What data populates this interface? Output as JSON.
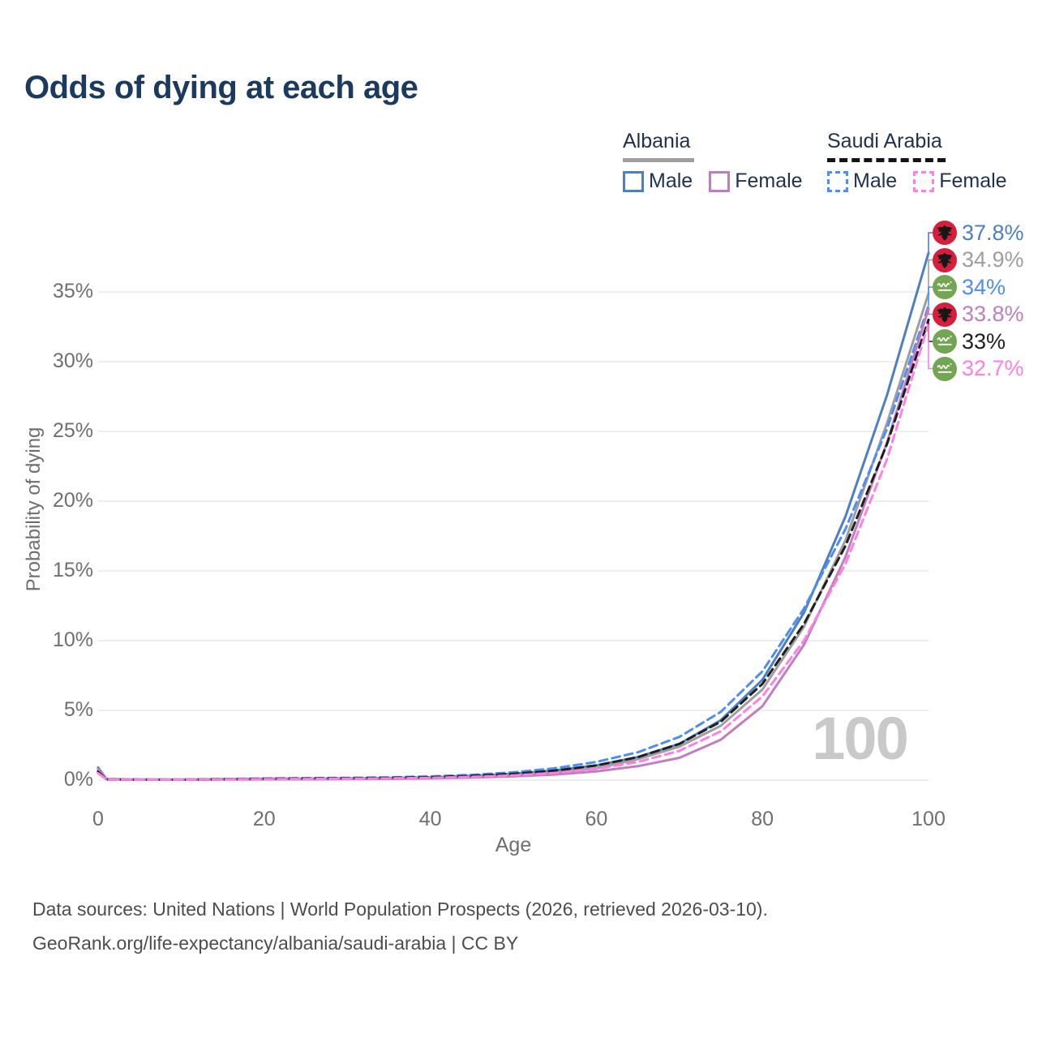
{
  "title": "Odds of dying at each age",
  "legend": {
    "groups": [
      {
        "label": "Albania",
        "underline_color": "#9e9e9e",
        "underline_style": "solid",
        "items": [
          {
            "label": "Male",
            "color": "#4d7fc1",
            "dashed": false
          },
          {
            "label": "Female",
            "color": "#bf7ec1",
            "dashed": false
          }
        ]
      },
      {
        "label": "Saudi Arabia",
        "underline_color": "#141414",
        "underline_style": "dashed",
        "items": [
          {
            "label": "Male",
            "color": "#4e8df6",
            "dashed": true
          },
          {
            "label": "Female",
            "color": "#ff7fe2",
            "dashed": true
          }
        ]
      }
    ]
  },
  "watermark": "100",
  "footer": {
    "line1": "Data sources: United Nations | World Population Prospects (2026, retrieved 2026-03-10).",
    "line2": "GeoRank.org/life-expectancy/albania/saudi-arabia | CC BY"
  },
  "chart_data": {
    "type": "line",
    "title": "Odds of dying at each age",
    "xlabel": "Age",
    "ylabel": "Probability of dying",
    "xlim": [
      0,
      100
    ],
    "ylim": [
      0,
      40.7
    ],
    "grid": true,
    "legend_position": "top-right",
    "x_tick_values": [
      0,
      20,
      40,
      60,
      80,
      100
    ],
    "x_tick_labels": [
      "0",
      "20",
      "40",
      "60",
      "80",
      "100"
    ],
    "y_tick_values": [
      0,
      5,
      10,
      15,
      20,
      25,
      30,
      35
    ],
    "y_tick_labels": [
      "0%",
      "5%",
      "10%",
      "15%",
      "20%",
      "25%",
      "30%",
      "35%"
    ],
    "x": [
      0,
      1,
      5,
      10,
      15,
      20,
      25,
      30,
      35,
      40,
      45,
      50,
      55,
      60,
      65,
      70,
      75,
      80,
      85,
      90,
      95,
      100
    ],
    "series": [
      {
        "id": "albania-male",
        "name": "Albania Male",
        "color": "#4d7fc1",
        "dash": "solid",
        "flag": "albania",
        "end_label": "37.8%",
        "values": [
          0.9,
          0.08,
          0.04,
          0.04,
          0.07,
          0.1,
          0.11,
          0.12,
          0.15,
          0.2,
          0.3,
          0.45,
          0.7,
          1.05,
          1.65,
          2.6,
          4.3,
          7.2,
          12.0,
          18.9,
          27.6,
          37.8
        ]
      },
      {
        "id": "albania-all",
        "name": "Albania Both sexes",
        "color": "#9e9e9e",
        "dash": "solid",
        "flag": "albania",
        "end_label": "34.9%",
        "values": [
          0.8,
          0.07,
          0.04,
          0.03,
          0.05,
          0.08,
          0.09,
          0.1,
          0.12,
          0.16,
          0.24,
          0.36,
          0.55,
          0.85,
          1.5,
          2.4,
          3.9,
          6.5,
          11.0,
          17.2,
          25.6,
          34.9
        ]
      },
      {
        "id": "saudi-arabia-male",
        "name": "Saudi Arabia Male",
        "color": "#4e8df6",
        "dash": "dashed",
        "flag": "saudi-arabia",
        "end_label": "34%",
        "values": [
          0.7,
          0.06,
          0.04,
          0.04,
          0.08,
          0.12,
          0.14,
          0.16,
          0.2,
          0.27,
          0.38,
          0.56,
          0.85,
          1.3,
          2.0,
          3.1,
          4.9,
          7.8,
          12.3,
          18.0,
          25.2,
          34.0
        ]
      },
      {
        "id": "albania-female",
        "name": "Albania Female",
        "color": "#bf7ec1",
        "dash": "solid",
        "flag": "albania",
        "end_label": "33.8%",
        "values": [
          0.75,
          0.06,
          0.03,
          0.03,
          0.04,
          0.05,
          0.06,
          0.07,
          0.09,
          0.12,
          0.18,
          0.27,
          0.4,
          0.62,
          1.0,
          1.6,
          2.9,
          5.3,
          9.7,
          16.0,
          24.2,
          33.8
        ]
      },
      {
        "id": "saudi-arabia-all",
        "name": "Saudi Arabia Both sexes",
        "color": "#1f1f1f",
        "dash": "dashed",
        "flag": "saudi-arabia",
        "end_label": "33%",
        "values": [
          0.6,
          0.05,
          0.03,
          0.03,
          0.06,
          0.09,
          0.11,
          0.13,
          0.16,
          0.21,
          0.3,
          0.45,
          0.68,
          1.05,
          1.65,
          2.6,
          4.2,
          6.9,
          11.2,
          16.8,
          24.1,
          33.0
        ]
      },
      {
        "id": "saudi-arabia-female",
        "name": "Saudi Arabia Female",
        "color": "#ff7fe2",
        "dash": "dashed",
        "flag": "saudi-arabia",
        "end_label": "32.7%",
        "values": [
          0.5,
          0.05,
          0.03,
          0.03,
          0.05,
          0.07,
          0.08,
          0.1,
          0.12,
          0.16,
          0.23,
          0.34,
          0.52,
          0.8,
          1.3,
          2.1,
          3.5,
          6.0,
          10.0,
          15.5,
          23.0,
          32.7
        ]
      }
    ]
  }
}
